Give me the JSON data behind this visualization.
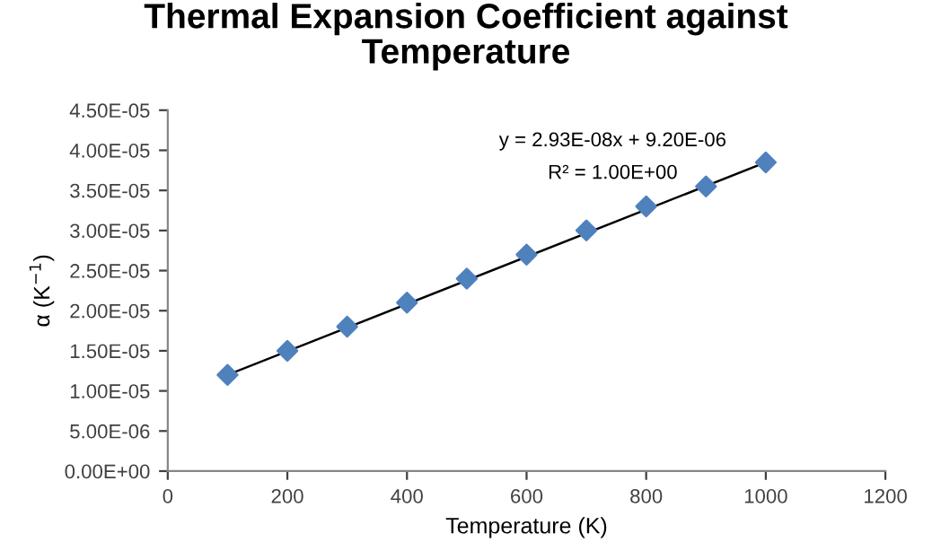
{
  "chart_data": {
    "type": "scatter",
    "title": "Thermal Expansion Coefficient against\nTemperature",
    "xlabel": "Temperature (K)",
    "ylabel": "α (K$^{−1}$)",
    "annotations": [
      "y = 2.93E-08x + 9.20E-06",
      "R² = 1.00E+00"
    ],
    "series": [
      {
        "color": "#4f81bd",
        "marker": "diamond",
        "x": [
          100,
          200,
          300,
          400,
          500,
          600,
          700,
          800,
          900,
          1000
        ],
        "values": [
          1.2e-05,
          1.5e-05,
          1.8e-05,
          2.1e-05,
          2.4e-05,
          2.7e-05,
          3e-05,
          3.3e-05,
          3.55e-05,
          3.85e-05
        ]
      },
      {
        "type": "line",
        "color": "#000000",
        "marker": "none",
        "line_style": "solid",
        "x": [
          100,
          1000
        ],
        "values": [
          1.2e-05,
          3.85e-05
        ]
      }
    ],
    "xlim": [
      0,
      1200
    ],
    "xticks": [
      0,
      200,
      400,
      600,
      800,
      1000,
      1200
    ],
    "ylim": [
      0,
      4.5e-05
    ],
    "yticks": [
      {
        "value": 0,
        "label": "0.00E+00"
      },
      {
        "value": 5e-06,
        "label": "5.00E-06"
      },
      {
        "value": 1e-05,
        "label": "1.00E-05"
      },
      {
        "value": 1.5e-05,
        "label": "1.50E-05"
      },
      {
        "value": 2e-05,
        "label": "2.00E-05"
      },
      {
        "value": 2.5e-05,
        "label": "2.50E-05"
      },
      {
        "value": 3e-05,
        "label": "3.00E-05"
      },
      {
        "value": 3.5e-05,
        "label": "3.50E-05"
      },
      {
        "value": 4e-05,
        "label": "4.00E-05"
      },
      {
        "value": 4.5e-05,
        "label": "4.50E-05"
      }
    ],
    "grid": false,
    "legend": false
  }
}
